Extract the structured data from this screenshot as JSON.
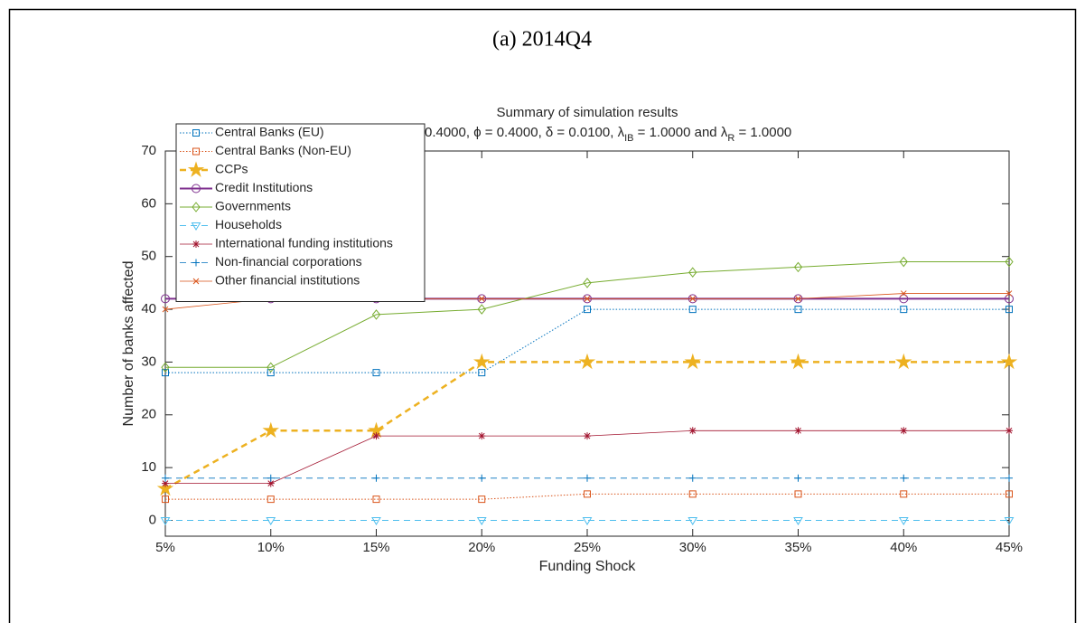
{
  "heading": "(a) 2014Q4",
  "chart_data": {
    "type": "line",
    "title": "Summary of simulation results",
    "subtitle": [
      "for κ = 0.4000, ϕ = 0.4000, δ = 0.0100, λ",
      "IB",
      " = 1.0000 and λ",
      "R",
      " = 1.0000"
    ],
    "x_label": "Funding Shock",
    "y_label": "Number of banks affected",
    "x": [
      5,
      10,
      15,
      20,
      25,
      30,
      35,
      40,
      45
    ],
    "xlim": [
      5,
      45
    ],
    "xticks": [
      {
        "value": 5,
        "label": "5%"
      },
      {
        "value": 10,
        "label": "10%"
      },
      {
        "value": 15,
        "label": "15%"
      },
      {
        "value": 20,
        "label": "20%"
      },
      {
        "value": 25,
        "label": "25%"
      },
      {
        "value": 30,
        "label": "30%"
      },
      {
        "value": 35,
        "label": "35%"
      },
      {
        "value": 40,
        "label": "40%"
      },
      {
        "value": 45,
        "label": "45%"
      }
    ],
    "ylim": [
      -3,
      70
    ],
    "yticks": [
      0,
      10,
      20,
      30,
      40,
      50,
      60,
      70
    ],
    "grid": false,
    "legend": "upper left",
    "series": [
      {
        "name": "Central Banks (EU)",
        "color": "#0072bd",
        "linestyle": "dotted",
        "marker": "square",
        "width": 1,
        "values": [
          28,
          28,
          28,
          28,
          40,
          40,
          40,
          40,
          40
        ]
      },
      {
        "name": "Central Banks (Non-EU)",
        "color": "#d95319",
        "linestyle": "dotted",
        "marker": "square",
        "width": 1,
        "values": [
          4,
          4,
          4,
          4,
          5,
          5,
          5,
          5,
          5
        ]
      },
      {
        "name": "CCPs",
        "color": "#edb120",
        "linestyle": "dashed",
        "marker": "star",
        "width": 2.5,
        "values": [
          6,
          17,
          17,
          30,
          30,
          30,
          30,
          30,
          30
        ]
      },
      {
        "name": "Credit Institutions",
        "color": "#7e2f8e",
        "linestyle": "solid",
        "marker": "circle",
        "width": 2,
        "values": [
          42,
          42,
          42,
          42,
          42,
          42,
          42,
          42,
          42
        ]
      },
      {
        "name": "Governments",
        "color": "#77ac30",
        "linestyle": "solid",
        "marker": "diamond",
        "width": 1,
        "values": [
          29,
          29,
          39,
          40,
          45,
          47,
          48,
          49,
          49
        ]
      },
      {
        "name": "Households",
        "color": "#4dbeee",
        "linestyle": "dashed",
        "marker": "triangle-down",
        "width": 1,
        "values": [
          0,
          0,
          0,
          0,
          0,
          0,
          0,
          0,
          0
        ]
      },
      {
        "name": "International funding institutions",
        "color": "#a2142f",
        "linestyle": "solid",
        "marker": "asterisk",
        "width": 0.8,
        "values": [
          7,
          7,
          16,
          16,
          16,
          17,
          17,
          17,
          17
        ]
      },
      {
        "name": "Non-financial corporations",
        "color": "#0072bd",
        "linestyle": "dashed",
        "marker": "plus",
        "width": 0.8,
        "values": [
          8,
          8,
          8,
          8,
          8,
          8,
          8,
          8,
          8
        ]
      },
      {
        "name": "Other financial institutions",
        "color": "#d95319",
        "linestyle": "solid",
        "marker": "x",
        "width": 0.8,
        "values": [
          40,
          42,
          42,
          42,
          42,
          42,
          42,
          43,
          43
        ]
      }
    ]
  }
}
